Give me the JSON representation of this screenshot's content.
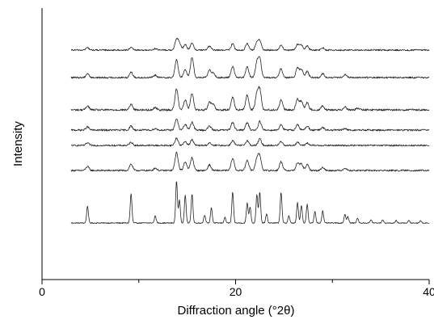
{
  "chart_data": {
    "type": "line",
    "title": "",
    "xlabel": "Diffraction angle (°2θ)",
    "ylabel": "Intensity",
    "xlim": [
      0,
      40
    ],
    "x_ticks": [
      0,
      20,
      40
    ],
    "x_tick_labels": [
      "0",
      "20",
      "40"
    ],
    "x_minor_ticks": [
      10,
      30
    ],
    "y_ticks_visible": false,
    "grid": false,
    "legend": "none",
    "x_range_measured": [
      3,
      40
    ],
    "series": [
      {
        "baseline": 276,
        "noise": 0.6,
        "peaks": [
          [
            4.7,
            21
          ],
          [
            9.2,
            36
          ],
          [
            11.7,
            9
          ],
          [
            13.9,
            52
          ],
          [
            14.2,
            28
          ],
          [
            14.8,
            34
          ],
          [
            15.5,
            36
          ],
          [
            16.8,
            10
          ],
          [
            17.5,
            19
          ],
          [
            18.9,
            7
          ],
          [
            19.7,
            38
          ],
          [
            21.2,
            25
          ],
          [
            21.5,
            20
          ],
          [
            22.2,
            35
          ],
          [
            22.5,
            38
          ],
          [
            23.2,
            11
          ],
          [
            24.7,
            38
          ],
          [
            25.5,
            9
          ],
          [
            26.4,
            25
          ],
          [
            26.8,
            22
          ],
          [
            27.4,
            23
          ],
          [
            28.2,
            14
          ],
          [
            29.0,
            15
          ],
          [
            31.3,
            11
          ],
          [
            31.6,
            8
          ],
          [
            32.6,
            6
          ],
          [
            34.0,
            4
          ],
          [
            35.2,
            4
          ],
          [
            36.6,
            3
          ],
          [
            37.9,
            3
          ],
          [
            39.1,
            3
          ]
        ]
      },
      {
        "baseline": 211,
        "noise": 1.0,
        "peaks": [
          [
            4.7,
            5
          ],
          [
            9.2,
            8
          ],
          [
            11.7,
            3
          ],
          [
            13.9,
            22
          ],
          [
            14.8,
            11
          ],
          [
            15.5,
            16
          ],
          [
            17.3,
            7
          ],
          [
            19.7,
            15
          ],
          [
            21.2,
            13
          ],
          [
            22.2,
            14
          ],
          [
            22.5,
            17
          ],
          [
            24.7,
            11
          ],
          [
            26.4,
            9
          ],
          [
            26.8,
            8
          ],
          [
            27.4,
            7
          ],
          [
            29.0,
            4
          ],
          [
            31.3,
            3
          ]
        ]
      },
      {
        "baseline": 180,
        "noise": 1.0,
        "peaks": [
          [
            4.7,
            3
          ],
          [
            9.2,
            4
          ],
          [
            13.9,
            9
          ],
          [
            14.8,
            5
          ],
          [
            15.5,
            7
          ],
          [
            17.3,
            3
          ],
          [
            19.7,
            6
          ],
          [
            21.2,
            6
          ],
          [
            22.5,
            8
          ],
          [
            24.7,
            5
          ],
          [
            26.4,
            4
          ],
          [
            27.4,
            3
          ]
        ]
      },
      {
        "baseline": 161,
        "noise": 1.1,
        "peaks": [
          [
            4.7,
            4
          ],
          [
            9.2,
            5
          ],
          [
            11.7,
            2
          ],
          [
            13.9,
            14
          ],
          [
            14.8,
            7
          ],
          [
            15.5,
            10
          ],
          [
            17.3,
            5
          ],
          [
            19.7,
            10
          ],
          [
            21.2,
            9
          ],
          [
            22.5,
            11
          ],
          [
            24.7,
            7
          ],
          [
            26.4,
            7
          ],
          [
            27.4,
            5
          ],
          [
            29.0,
            3
          ],
          [
            31.3,
            2
          ]
        ]
      },
      {
        "baseline": 136,
        "noise": 1.2,
        "peaks": [
          [
            4.7,
            5
          ],
          [
            9.2,
            7
          ],
          [
            11.7,
            3
          ],
          [
            13.9,
            26
          ],
          [
            14.8,
            12
          ],
          [
            15.5,
            20
          ],
          [
            17.3,
            10
          ],
          [
            17.7,
            7
          ],
          [
            19.7,
            16
          ],
          [
            21.2,
            18
          ],
          [
            22.2,
            19
          ],
          [
            22.5,
            24
          ],
          [
            24.7,
            12
          ],
          [
            26.4,
            13
          ],
          [
            26.8,
            11
          ],
          [
            27.4,
            9
          ],
          [
            29.0,
            5
          ],
          [
            31.3,
            4
          ],
          [
            32.6,
            2
          ]
        ]
      },
      {
        "baseline": 96,
        "noise": 1.0,
        "peaks": [
          [
            4.7,
            5
          ],
          [
            9.2,
            7
          ],
          [
            11.7,
            3
          ],
          [
            13.9,
            22
          ],
          [
            14.8,
            10
          ],
          [
            15.5,
            25
          ],
          [
            17.3,
            9
          ],
          [
            17.7,
            6
          ],
          [
            19.7,
            14
          ],
          [
            21.2,
            13
          ],
          [
            22.2,
            17
          ],
          [
            22.5,
            23
          ],
          [
            24.7,
            11
          ],
          [
            26.4,
            12
          ],
          [
            26.8,
            10
          ],
          [
            27.4,
            8
          ],
          [
            29.0,
            5
          ],
          [
            31.3,
            4
          ]
        ]
      },
      {
        "baseline": 62,
        "noise": 0.9,
        "peaks": [
          [
            4.7,
            3
          ],
          [
            9.2,
            3
          ],
          [
            11.7,
            2
          ],
          [
            13.9,
            13
          ],
          [
            14.2,
            8
          ],
          [
            14.8,
            7
          ],
          [
            15.5,
            9
          ],
          [
            17.3,
            5
          ],
          [
            19.7,
            8
          ],
          [
            21.2,
            8
          ],
          [
            22.2,
            9
          ],
          [
            22.5,
            11
          ],
          [
            24.7,
            6
          ],
          [
            26.4,
            7
          ],
          [
            26.8,
            6
          ],
          [
            27.4,
            5
          ],
          [
            29.0,
            3
          ]
        ]
      }
    ]
  }
}
